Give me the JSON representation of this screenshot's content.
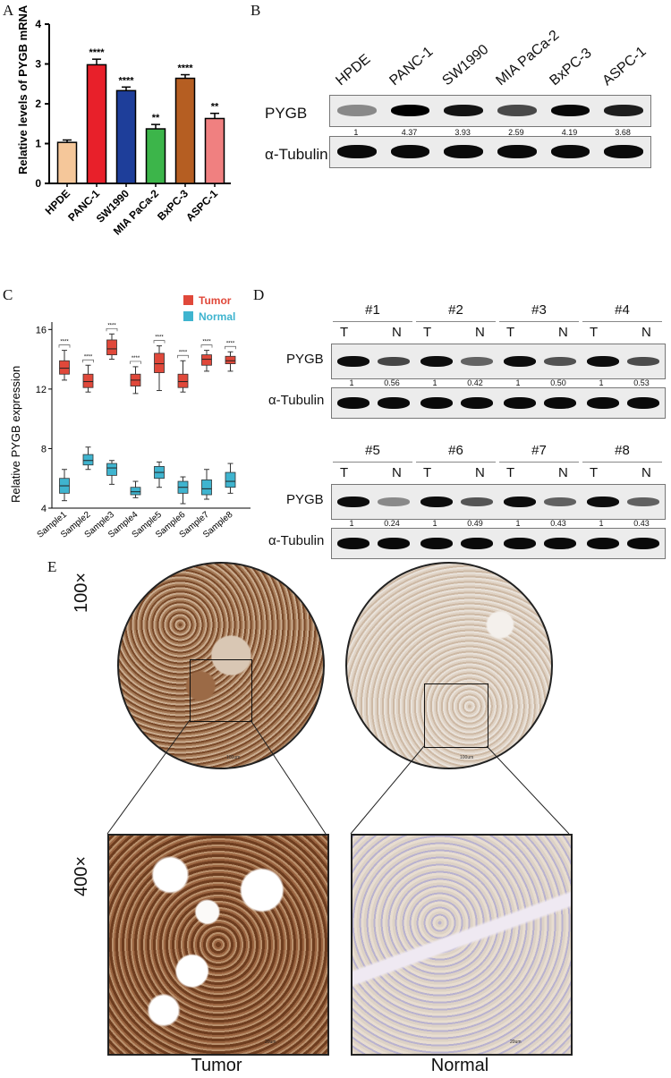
{
  "panel_labels": {
    "A": "A",
    "B": "B",
    "C": "C",
    "D": "D",
    "E": "E"
  },
  "chart_data": [
    {
      "type": "bar",
      "panel": "A",
      "ylabel": "Relative levels of PYGB mRNA",
      "categories": [
        "HPDE",
        "PANC-1",
        "SW1990",
        "MIA PaCa-2",
        "BxPC-3",
        "ASPC-1"
      ],
      "values": [
        1.03,
        2.98,
        2.33,
        1.37,
        2.64,
        1.63
      ],
      "errors": [
        0.06,
        0.14,
        0.09,
        0.11,
        0.09,
        0.13
      ],
      "significance": [
        "",
        "****",
        "****",
        "**",
        "****",
        "**"
      ],
      "colors": [
        "#f5c79a",
        "#e8202a",
        "#1e3e9a",
        "#3cb54a",
        "#b55e22",
        "#f08080"
      ],
      "ylim": [
        0,
        4
      ],
      "yticks": [
        "0",
        "1",
        "2",
        "3",
        "4"
      ]
    },
    {
      "type": "box",
      "panel": "C",
      "ylabel": "Relative PYGB expression",
      "categories": [
        "Sample1",
        "Sample2",
        "Sample3",
        "Sample4",
        "Sample5",
        "Sample6",
        "Sample7",
        "Sample8"
      ],
      "ylim": [
        4,
        16.5
      ],
      "yticks": [
        "4",
        "8",
        "12",
        "16"
      ],
      "significance": "****",
      "series": [
        {
          "name": "Tumor",
          "color": "#e0483a",
          "boxes": [
            [
              12.6,
              13.0,
              13.4,
              13.9,
              14.6
            ],
            [
              11.8,
              12.1,
              12.5,
              13.0,
              13.6
            ],
            [
              14.0,
              14.3,
              14.7,
              15.3,
              15.7
            ],
            [
              11.7,
              12.2,
              12.6,
              13.0,
              13.5
            ],
            [
              11.9,
              13.1,
              13.7,
              14.4,
              14.9
            ],
            [
              11.8,
              12.1,
              12.5,
              13.0,
              13.9
            ],
            [
              13.2,
              13.6,
              14.0,
              14.3,
              14.6
            ],
            [
              13.2,
              13.7,
              13.9,
              14.2,
              14.5
            ]
          ]
        },
        {
          "name": "Normal",
          "color": "#3fb4cf",
          "boxes": [
            [
              4.5,
              5.0,
              5.5,
              6.0,
              6.6
            ],
            [
              6.6,
              6.9,
              7.2,
              7.6,
              8.1
            ],
            [
              5.6,
              6.2,
              6.7,
              7.0,
              7.2
            ],
            [
              4.7,
              4.9,
              5.1,
              5.4,
              5.8
            ],
            [
              5.4,
              6.0,
              6.4,
              6.8,
              7.1
            ],
            [
              4.3,
              5.0,
              5.4,
              5.8,
              6.1
            ],
            [
              4.6,
              4.9,
              5.3,
              5.9,
              6.6
            ],
            [
              5.0,
              5.4,
              5.8,
              6.4,
              7.0
            ]
          ]
        }
      ]
    }
  ],
  "panel_b": {
    "lanes": [
      "HPDE",
      "PANC-1",
      "SW1990",
      "MIA PaCa-2",
      "BxPC-3",
      "ASPC-1"
    ],
    "target": "PYGB",
    "loading": "α-Tubulin",
    "quant": [
      "1",
      "4.37",
      "3.93",
      "2.59",
      "4.19",
      "3.68"
    ]
  },
  "panel_d": {
    "target": "PYGB",
    "loading": "α-Tubulin",
    "t_label": "T",
    "n_label": "N",
    "pairs": [
      {
        "label": "#1",
        "t": "1",
        "n": "0.56"
      },
      {
        "label": "#2",
        "t": "1",
        "n": "0.42"
      },
      {
        "label": "#3",
        "t": "1",
        "n": "0.50"
      },
      {
        "label": "#4",
        "t": "1",
        "n": "0.53"
      },
      {
        "label": "#5",
        "t": "1",
        "n": "0.24"
      },
      {
        "label": "#6",
        "t": "1",
        "n": "0.49"
      },
      {
        "label": "#7",
        "t": "1",
        "n": "0.43"
      },
      {
        "label": "#8",
        "t": "1",
        "n": "0.43"
      }
    ]
  },
  "panel_e": {
    "mag_low": "100×",
    "mag_high": "400×",
    "tumor": "Tumor",
    "normal": "Normal",
    "scale_low": "100um",
    "scale_high": "20um"
  }
}
